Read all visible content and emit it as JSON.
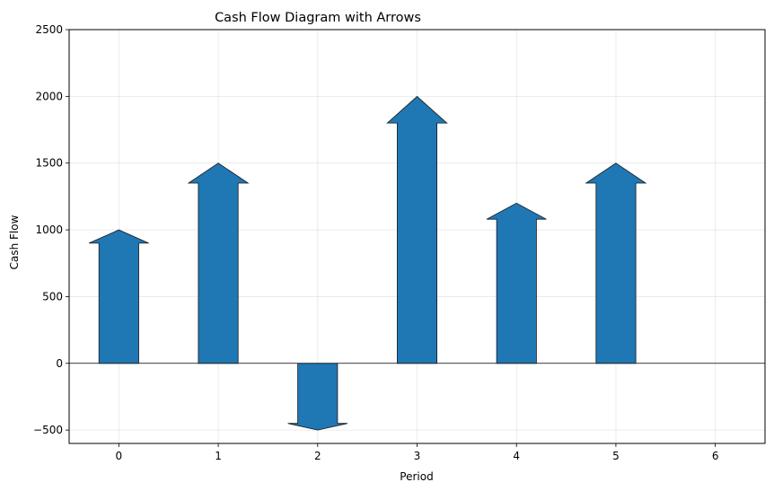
{
  "chart_data": {
    "type": "bar",
    "style": "arrows",
    "title": "Cash Flow Diagram with Arrows",
    "xlabel": "Period",
    "ylabel": "Cash Flow",
    "x": [
      0,
      1,
      2,
      3,
      4,
      5
    ],
    "values": [
      1000,
      1500,
      -500,
      2000,
      1200,
      1500
    ],
    "xticks": [
      "0",
      "1",
      "2",
      "3",
      "4",
      "5",
      "6"
    ],
    "yticks": [
      "−500",
      "0",
      "500",
      "1000",
      "1500",
      "2000",
      "2500"
    ],
    "xlim": [
      -0.5,
      6.5
    ],
    "ylim": [
      -600,
      2500
    ],
    "grid": true,
    "zero_line": true,
    "color": "#1f77b4",
    "edge_color": "#1a1a1a"
  }
}
